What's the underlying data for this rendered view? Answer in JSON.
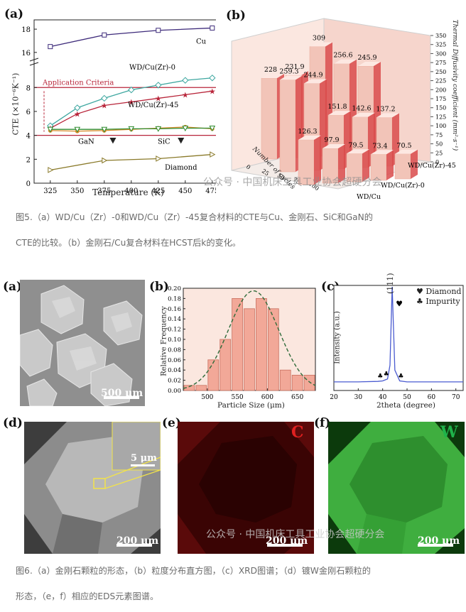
{
  "figure5": {
    "panel_a": {
      "label": "(a)",
      "ylabel": "CTE (×10⁻⁶K⁻¹)",
      "xlabel": "Temperature (K)",
      "x_ticks": [
        "325",
        "350",
        "375",
        "400",
        "425",
        "450",
        "475"
      ],
      "y_ticks_lower": [
        "0",
        "2",
        "4",
        "6",
        "8"
      ],
      "y_ticks_upper": [
        "16",
        "18"
      ],
      "criteria_label": "Application Criteria",
      "series_labels": {
        "cu": "Cu",
        "wd0": "WD/Cu(Zr)-0",
        "wd45": "WD/Cu(Zr)-45",
        "gan": "GaN",
        "sic": "SiC",
        "diamond": "Diamond"
      },
      "colors": {
        "cu": "#3d2a7a",
        "wd0": "#3ea7a0",
        "wd45": "#b8253a",
        "gan": "#d98a2a",
        "sic": "#2e8b2e",
        "diamond": "#8a7a2a",
        "criteria": "#b8253a"
      }
    },
    "panel_b": {
      "label": "(b)",
      "zlabel": "Thermal Diffusivity coefficient (mm²·s⁻¹)",
      "z_ticks": [
        "0",
        "25",
        "50",
        "75",
        "100",
        "125",
        "150",
        "175",
        "200",
        "225",
        "250",
        "275",
        "300",
        "325",
        "350"
      ],
      "x_ticks": [
        "0",
        "25",
        "50",
        "75",
        "100"
      ],
      "x_axis_label": "Number of cycles",
      "row_labels": [
        "WD/Cu(Zr)-45",
        "WD/Cu(Zr)-0",
        "WD/Cu"
      ],
      "bar_values": [
        "228",
        "231.9",
        "309",
        "256.6",
        "245.9",
        "259.3",
        "244.9",
        "151.8",
        "142.6",
        "137.2",
        "126.3",
        "97.9",
        "79.5",
        "73.4",
        "70.5"
      ]
    },
    "caption_line1": "图5.（a）WD/Cu（Zr）-0和WD/Cu（Zr）-45复合材料的CTE与Cu、金刚石、SiC和GaN的",
    "caption_line2": "CTE的比较。（b）金刚石/Cu复合材料在HCST后k的变化。",
    "watermark": "公众号 · 中国机床工具工业协会超硬分会"
  },
  "figure6": {
    "a": {
      "label": "(a)",
      "scale": "500 μm"
    },
    "b": {
      "label": "(b)",
      "xlabel": "Particle Size (μm)",
      "ylabel": "Relative Frequency",
      "x_ticks": [
        "500",
        "550",
        "600",
        "650"
      ],
      "y_ticks": [
        "0.00",
        "0.02",
        "0.04",
        "0.06",
        "0.08",
        "0.10",
        "0.12",
        "0.14",
        "0.16",
        "0.18",
        "0.20"
      ]
    },
    "c": {
      "label": "(c)",
      "xlabel": "2theta (degree)",
      "ylabel": "Intensity (a.u.)",
      "x_ticks": [
        "20",
        "30",
        "40",
        "50",
        "60",
        "70"
      ],
      "peak_label": "(111)",
      "legend_diamond": "Diamond",
      "legend_impurity": "Impurity"
    },
    "d": {
      "label": "(d)",
      "scale": "200 μm",
      "inset_scale": "5 μm"
    },
    "e": {
      "label": "(e)",
      "scale": "200 μm",
      "element": "C"
    },
    "f": {
      "label": "(f)",
      "scale": "200 μm",
      "element": "W"
    },
    "caption_line1": "图6.（a）金刚石颗粒的形态，（b）粒度分布直方图，（c）XRD图谱；（d）镀W金刚石颗粒的",
    "caption_line2": "形态，（e，f）相应的EDS元素图谱。",
    "watermark": "公众号 · 中国机床工具工业协会超硬分会"
  },
  "chart_data": [
    {
      "type": "line",
      "x": [
        325,
        350,
        375,
        400,
        425,
        450,
        475
      ],
      "xlabel": "Temperature (K)",
      "ylabel": "CTE (×10⁻⁶K⁻¹)",
      "series": [
        {
          "name": "Cu",
          "x": [
            325,
            375,
            425,
            475
          ],
          "values": [
            16.5,
            17.5,
            17.9,
            18.1
          ]
        },
        {
          "name": "WD/Cu(Zr)-0",
          "x": [
            325,
            350,
            375,
            400,
            425,
            450,
            475
          ],
          "values": [
            4.8,
            6.3,
            7.1,
            7.8,
            8.2,
            8.6,
            8.8
          ]
        },
        {
          "name": "WD/Cu(Zr)-45",
          "x": [
            325,
            350,
            375,
            400,
            425,
            450,
            475
          ],
          "values": [
            4.6,
            5.8,
            6.5,
            6.8,
            7.1,
            7.4,
            7.7
          ]
        },
        {
          "name": "GaN",
          "x": [
            325,
            350,
            375,
            400,
            425,
            450,
            475
          ],
          "values": [
            4.4,
            4.35,
            4.4,
            4.5,
            4.6,
            4.7,
            4.55
          ]
        },
        {
          "name": "SiC",
          "x": [
            325,
            350,
            375,
            400,
            425,
            450,
            475
          ],
          "values": [
            4.5,
            4.5,
            4.5,
            4.55,
            4.55,
            4.6,
            4.6
          ]
        },
        {
          "name": "Diamond",
          "x": [
            325,
            375,
            425,
            475
          ],
          "values": [
            1.1,
            1.9,
            2.05,
            2.4
          ]
        }
      ],
      "reference_band": [
        4,
        8
      ]
    },
    {
      "type": "bar",
      "categories": [
        "0",
        "25",
        "50",
        "75",
        "100"
      ],
      "series": [
        {
          "name": "WD/Cu(Zr)-45",
          "values": [
            228,
            231.9,
            309,
            256.6,
            245.9
          ]
        },
        {
          "name": "WD/Cu(Zr)-0",
          "values": [
            259.3,
            244.9,
            151.8,
            142.6,
            137.2
          ]
        },
        {
          "name": "WD/Cu",
          "values": [
            126.3,
            97.9,
            79.5,
            73.4,
            70.5
          ]
        }
      ],
      "zlabel": "Thermal Diffusivity coefficient (mm²·s⁻¹)",
      "zlim": [
        0,
        350
      ]
    },
    {
      "type": "bar",
      "categories": [
        "470",
        "490",
        "510",
        "530",
        "550",
        "570",
        "590",
        "610",
        "630",
        "650",
        "670"
      ],
      "values": [
        0.01,
        0.01,
        0.06,
        0.1,
        0.18,
        0.16,
        0.18,
        0.16,
        0.04,
        0.03,
        0.03
      ],
      "xlabel": "Particle Size (μm)",
      "ylabel": "Relative Frequency",
      "ylim": [
        0,
        0.2
      ],
      "fit": {
        "mean": 577,
        "peak": 0.195,
        "sigma": 42
      }
    },
    {
      "type": "line",
      "x": [
        20,
        30,
        38,
        40,
        42,
        43,
        43.9,
        45,
        47,
        50,
        60,
        73
      ],
      "values": [
        0.03,
        0.03,
        0.035,
        0.04,
        0.06,
        0.2,
        1.0,
        0.15,
        0.04,
        0.03,
        0.03,
        0.03
      ],
      "xlabel": "2theta (degree)",
      "ylabel": "Intensity (a.u.)",
      "xlim": [
        20,
        73
      ]
    }
  ]
}
